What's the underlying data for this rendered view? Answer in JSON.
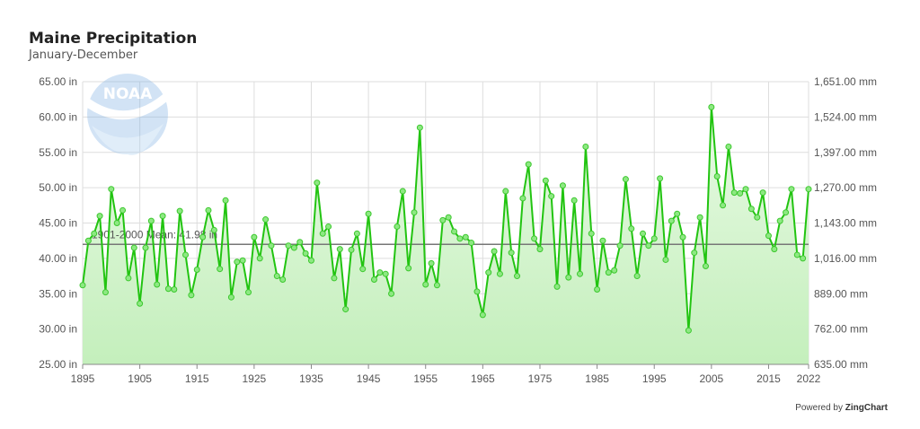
{
  "header": {
    "title": "Maine Precipitation",
    "subtitle": "January-December"
  },
  "credit": {
    "prefix": "Powered by ",
    "brand": "ZingChart"
  },
  "logo": {
    "text": "NOAA"
  },
  "colors": {
    "line": "#22c411",
    "marker": "#7be36e",
    "fill": "#c9f2c2",
    "mean": "#777777",
    "grid": "#dddddd"
  },
  "chart_data": {
    "type": "area",
    "title": "Maine Precipitation",
    "subtitle": "January-December",
    "ylim": [
      25,
      65
    ],
    "xlim": [
      1895,
      2022
    ],
    "y_ticks": [
      "25.00 in",
      "30.00 in",
      "35.00 in",
      "40.00 in",
      "45.00 in",
      "50.00 in",
      "55.00 in",
      "60.00 in",
      "65.00 in"
    ],
    "y2_ticks": [
      "635.00 mm",
      "762.00 mm",
      "889.00 mm",
      "1,016.00 mm",
      "1,143.00 mm",
      "1,270.00 mm",
      "1,397.00 mm",
      "1,524.00 mm",
      "1,651.00 mm"
    ],
    "x_ticks": [
      "1895",
      "1905",
      "1915",
      "1925",
      "1935",
      "1945",
      "1955",
      "1965",
      "1975",
      "1985",
      "1995",
      "2005",
      "2015",
      "2022"
    ],
    "mean": {
      "label": "1901-2000 Mean: 41.98 in",
      "value": 41.98
    },
    "grid": true,
    "series": [
      {
        "x": [
          1895,
          1896,
          1897,
          1898,
          1899,
          1900,
          1901,
          1902,
          1903,
          1904,
          1905,
          1906,
          1907,
          1908,
          1909,
          1910,
          1911,
          1912,
          1913,
          1914,
          1915,
          1916,
          1917,
          1918,
          1919,
          1920,
          1921,
          1922,
          1923,
          1924,
          1925,
          1926,
          1927,
          1928,
          1929,
          1930,
          1931,
          1932,
          1933,
          1934,
          1935,
          1936,
          1937,
          1938,
          1939,
          1940,
          1941,
          1942,
          1943,
          1944,
          1945,
          1946,
          1947,
          1948,
          1949,
          1950,
          1951,
          1952,
          1953,
          1954,
          1955,
          1956,
          1957,
          1958,
          1959,
          1960,
          1961,
          1962,
          1963,
          1964,
          1965,
          1966,
          1967,
          1968,
          1969,
          1970,
          1971,
          1972,
          1973,
          1974,
          1975,
          1976,
          1977,
          1978,
          1979,
          1980,
          1981,
          1982,
          1983,
          1984,
          1985,
          1986,
          1987,
          1988,
          1989,
          1990,
          1991,
          1992,
          1993,
          1994,
          1995,
          1996,
          1997,
          1998,
          1999,
          2000,
          2001,
          2002,
          2003,
          2004,
          2005,
          2006,
          2007,
          2008,
          2009,
          2010,
          2011,
          2012,
          2013,
          2014,
          2015,
          2016,
          2017,
          2018,
          2019,
          2020,
          2021,
          2022
        ],
        "values": [
          36.2,
          42.5,
          43.5,
          46.0,
          35.2,
          49.8,
          45.0,
          46.8,
          37.2,
          41.5,
          33.6,
          41.5,
          45.3,
          36.3,
          46.0,
          35.7,
          35.6,
          46.7,
          40.5,
          34.8,
          38.4,
          43.0,
          46.8,
          44.0,
          38.5,
          48.2,
          34.5,
          39.5,
          39.7,
          35.2,
          43.0,
          40.0,
          45.5,
          41.8,
          37.5,
          37.0,
          41.8,
          41.5,
          42.3,
          40.7,
          39.7,
          50.7,
          43.5,
          44.5,
          37.2,
          41.3,
          32.8,
          41.2,
          43.5,
          38.5,
          46.3,
          37.0,
          38.0,
          37.8,
          35.0,
          44.5,
          49.5,
          38.6,
          46.5,
          58.5,
          36.3,
          39.3,
          36.2,
          45.4,
          45.8,
          43.8,
          42.8,
          43.0,
          42.2,
          35.3,
          32.0,
          38.0,
          41.0,
          37.8,
          49.5,
          40.8,
          37.5,
          48.5,
          53.3,
          42.8,
          41.3,
          51.0,
          48.8,
          36.0,
          50.3,
          37.3,
          48.2,
          37.8,
          55.8,
          43.5,
          35.6,
          42.5,
          38.0,
          38.3,
          41.8,
          51.2,
          44.2,
          37.5,
          43.5,
          41.8,
          42.8,
          51.3,
          39.8,
          45.3,
          46.3,
          43.0,
          29.8,
          40.8,
          45.8,
          38.9,
          61.4,
          51.6,
          47.5,
          55.8,
          49.3,
          49.2,
          49.8,
          47.0,
          45.8,
          49.3,
          43.2,
          41.3,
          45.3,
          46.5,
          49.8,
          40.5,
          40.0,
          49.8
        ]
      }
    ]
  }
}
